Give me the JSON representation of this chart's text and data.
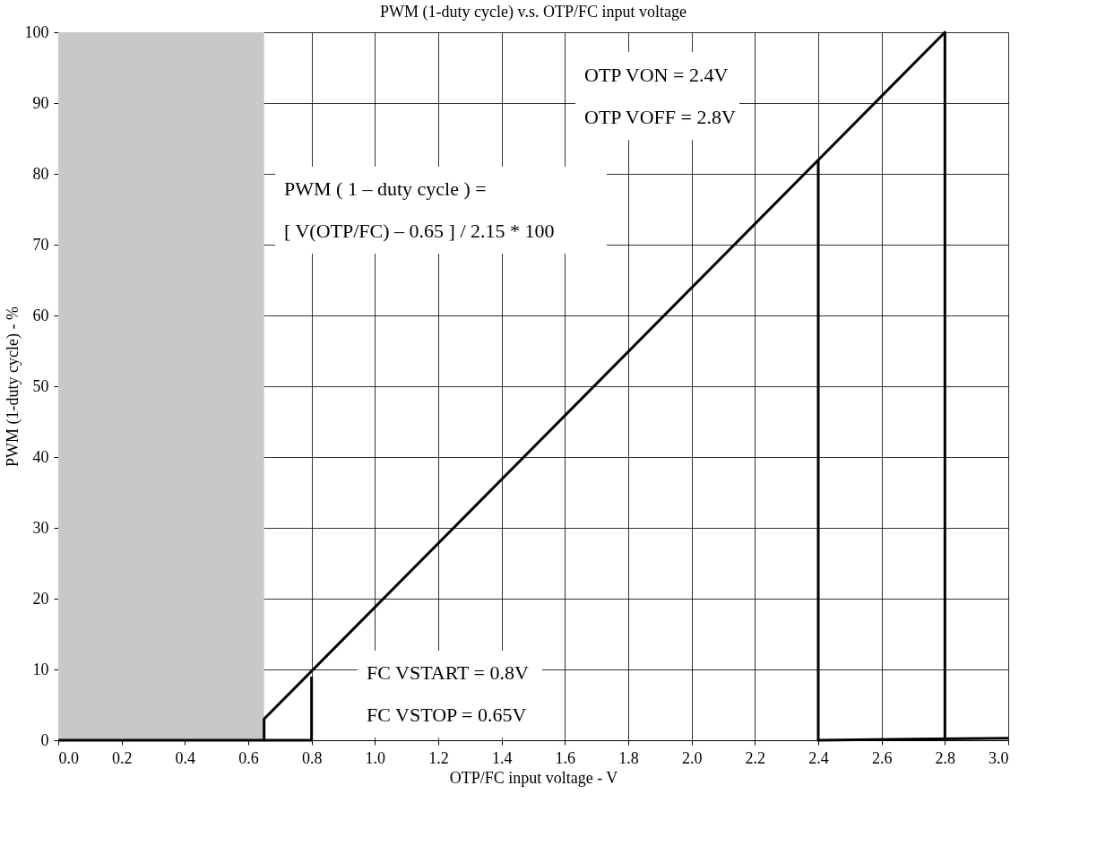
{
  "chart_data": {
    "type": "line",
    "title": "PWM (1-duty cycle) v.s. OTP/FC input voltage",
    "xlabel": "OTP/FC input voltage - V",
    "ylabel": "PWM (1-duty cycle) - %",
    "xlim": [
      0,
      3.0
    ],
    "xticks": [
      {
        "value": 0,
        "label": "0.0"
      },
      {
        "value": 0.2,
        "label": "0.2"
      },
      {
        "value": 0.4,
        "label": "0.4"
      },
      {
        "value": 0.6,
        "label": "0.6"
      },
      {
        "value": 0.8,
        "label": "0.8"
      },
      {
        "value": 1,
        "label": "1.0"
      },
      {
        "value": 1.2,
        "label": "1.2"
      },
      {
        "value": 1.4,
        "label": "1.4"
      },
      {
        "value": 1.6,
        "label": "1.6"
      },
      {
        "value": 1.8,
        "label": "1.8"
      },
      {
        "value": 2,
        "label": "2.0"
      },
      {
        "value": 2.2,
        "label": "2.2"
      },
      {
        "value": 2.4,
        "label": "2.4"
      },
      {
        "value": 2.6,
        "label": "2.6"
      },
      {
        "value": 2.8,
        "label": "2.8"
      },
      {
        "value": 3,
        "label": "3.0"
      }
    ],
    "ylim": [
      0,
      100
    ],
    "yticks": [
      0,
      10,
      20,
      30,
      40,
      50,
      60,
      70,
      80,
      90,
      100
    ],
    "grid": true,
    "marker": "none",
    "line_style": "solid",
    "series": [
      {
        "color": "#000000",
        "x": [
          0,
          0.65,
          0.65,
          2.8,
          2.8
        ],
        "values": [
          0,
          0,
          3,
          100,
          0
        ]
      },
      {
        "color": "#000000",
        "x": [
          0.65,
          0.8,
          0.8
        ],
        "values": [
          0,
          0,
          9
        ]
      },
      {
        "color": "#000000",
        "x": [
          2.4,
          2.4,
          3.0
        ],
        "values": [
          82,
          0,
          0.3
        ]
      }
    ],
    "bands": [
      {
        "axis": "x",
        "from": 0,
        "to": 0.65,
        "color": "#c8c8c8"
      }
    ],
    "annotations": [
      "OTP VON = 2.4V",
      "OTP VOFF = 2.8V",
      "PWM ( 1 – duty cycle ) =",
      "[ V(OTP/FC) – 0.65 ] / 2.15 * 100",
      "FC VSTART = 0.8V",
      "FC VSTOP = 0.65V"
    ]
  }
}
